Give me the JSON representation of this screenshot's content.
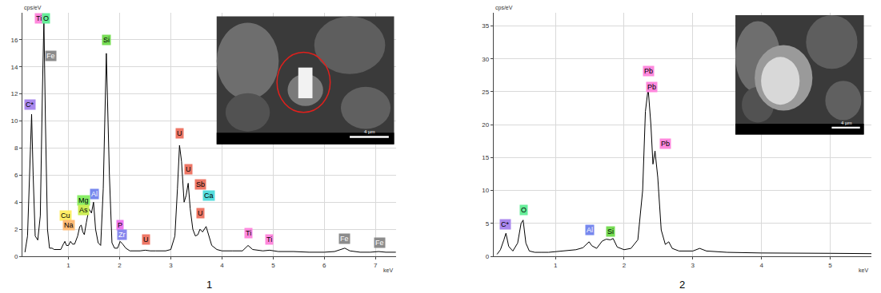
{
  "chart_data": [
    {
      "type": "line",
      "caption": "1",
      "y_label": "cps/eV",
      "x_label": "keV",
      "color": "#000000",
      "grid": true,
      "xlim": [
        0.1,
        7.4
      ],
      "xticks": [
        1,
        2,
        3,
        4,
        5,
        6,
        7
      ],
      "ylim": [
        0,
        18
      ],
      "yticks": [
        0,
        2,
        4,
        6,
        8,
        10,
        12,
        14,
        16
      ],
      "x": [
        0.15,
        0.2,
        0.24,
        0.28,
        0.31,
        0.35,
        0.4,
        0.45,
        0.49,
        0.52,
        0.55,
        0.59,
        0.63,
        0.68,
        0.72,
        0.76,
        0.8,
        0.85,
        0.9,
        0.93,
        0.96,
        1.0,
        1.04,
        1.08,
        1.12,
        1.18,
        1.22,
        1.25,
        1.28,
        1.31,
        1.35,
        1.4,
        1.45,
        1.49,
        1.53,
        1.58,
        1.63,
        1.68,
        1.74,
        1.8,
        1.85,
        1.9,
        1.96,
        2.01,
        2.06,
        2.12,
        2.2,
        2.3,
        2.4,
        2.5,
        2.6,
        2.7,
        2.8,
        2.9,
        3.0,
        3.08,
        3.13,
        3.17,
        3.21,
        3.26,
        3.3,
        3.34,
        3.38,
        3.43,
        3.48,
        3.53,
        3.57,
        3.62,
        3.69,
        3.74,
        3.8,
        3.9,
        4.0,
        4.2,
        4.4,
        4.51,
        4.6,
        4.8,
        4.93,
        5.1,
        5.4,
        5.7,
        6.0,
        6.2,
        6.4,
        6.5,
        6.7,
        6.9,
        7.06,
        7.2,
        7.4
      ],
      "values": [
        0.3,
        1.5,
        6,
        10.5,
        6,
        1.5,
        1.2,
        3,
        12,
        17.5,
        10,
        2,
        0.6,
        0.6,
        0.5,
        0.5,
        0.5,
        0.5,
        0.9,
        1.1,
        0.8,
        0.8,
        1.1,
        0.9,
        0.9,
        1.5,
        2.2,
        2.3,
        1.8,
        1.6,
        2.5,
        3.5,
        3.2,
        4.0,
        2.0,
        1.0,
        0.8,
        5,
        15,
        6,
        1.0,
        0.6,
        0.6,
        1.1,
        0.9,
        0.6,
        0.4,
        0.4,
        0.4,
        0.45,
        0.4,
        0.4,
        0.4,
        0.4,
        0.5,
        1.5,
        5,
        8.2,
        7,
        4,
        4.5,
        5.4,
        3.5,
        2,
        1.5,
        1.6,
        2.0,
        1.8,
        2.2,
        1.5,
        0.8,
        0.5,
        0.4,
        0.4,
        0.4,
        0.8,
        0.5,
        0.4,
        0.45,
        0.35,
        0.35,
        0.3,
        0.3,
        0.35,
        0.6,
        0.4,
        0.3,
        0.3,
        0.35,
        0.3,
        0.3
      ],
      "annotations": [
        {
          "text": "Ti",
          "x": 0.42,
          "y": 17.2,
          "color": "#ff88dd"
        },
        {
          "text": "O",
          "x": 0.56,
          "y": 17.2,
          "color": "#66ee99"
        },
        {
          "text": "Fe",
          "x": 0.66,
          "y": 14.4,
          "color": "#8c8c8c"
        },
        {
          "text": "C*",
          "x": 0.25,
          "y": 10.8,
          "color": "#aa88ee"
        },
        {
          "text": "Si",
          "x": 1.74,
          "y": 15.6,
          "color": "#77dd55"
        },
        {
          "text": "Al",
          "x": 1.5,
          "y": 4.2,
          "color": "#7788ee"
        },
        {
          "text": "Mg",
          "x": 1.3,
          "y": 3.7,
          "color": "#88ee66"
        },
        {
          "text": "As",
          "x": 1.3,
          "y": 3.0,
          "color": "#ccee55"
        },
        {
          "text": "Cu",
          "x": 0.95,
          "y": 2.6,
          "color": "#ffee66"
        },
        {
          "text": "Na",
          "x": 1.0,
          "y": 1.9,
          "color": "#ffbb77"
        },
        {
          "text": "P",
          "x": 2.01,
          "y": 1.9,
          "color": "#ee77ee"
        },
        {
          "text": "Zr",
          "x": 2.04,
          "y": 1.2,
          "color": "#8888ee"
        },
        {
          "text": "U",
          "x": 2.52,
          "y": 0.8,
          "color": "#ee7766"
        },
        {
          "text": "U",
          "x": 3.17,
          "y": 8.7,
          "color": "#ee7766"
        },
        {
          "text": "U",
          "x": 3.34,
          "y": 6.0,
          "color": "#ee7766"
        },
        {
          "text": "Sb",
          "x": 3.58,
          "y": 4.9,
          "color": "#ee7766"
        },
        {
          "text": "Ca",
          "x": 3.74,
          "y": 4.1,
          "color": "#55dddd"
        },
        {
          "text": "U",
          "x": 3.58,
          "y": 2.8,
          "color": "#ee7766"
        },
        {
          "text": "Ti",
          "x": 4.51,
          "y": 1.3,
          "color": "#ff88dd"
        },
        {
          "text": "Ti",
          "x": 4.93,
          "y": 0.8,
          "color": "#ff88dd"
        },
        {
          "text": "Fe",
          "x": 6.4,
          "y": 0.9,
          "color": "#8c8c8c"
        },
        {
          "text": "Fe",
          "x": 7.08,
          "y": 0.6,
          "color": "#8c8c8c"
        }
      ],
      "inset_label": "4 µm"
    },
    {
      "type": "line",
      "caption": "2",
      "y_label": "cps/eV",
      "x_label": "keV",
      "color": "#000000",
      "grid": true,
      "xlim": [
        0.1,
        5.6
      ],
      "xticks": [
        1,
        2,
        3,
        4,
        5
      ],
      "ylim": [
        0,
        37
      ],
      "yticks": [
        0,
        5,
        10,
        15,
        20,
        25,
        30,
        35
      ],
      "x": [
        0.15,
        0.2,
        0.25,
        0.28,
        0.32,
        0.38,
        0.45,
        0.5,
        0.53,
        0.57,
        0.62,
        0.7,
        0.8,
        0.9,
        1.0,
        1.1,
        1.2,
        1.3,
        1.4,
        1.45,
        1.49,
        1.53,
        1.6,
        1.68,
        1.74,
        1.8,
        1.84,
        1.9,
        2.0,
        2.1,
        2.2,
        2.27,
        2.31,
        2.35,
        2.39,
        2.42,
        2.45,
        2.49,
        2.54,
        2.6,
        2.65,
        2.7,
        2.8,
        3.0,
        3.1,
        3.2,
        3.5,
        4.0,
        4.5,
        5.0,
        5.6
      ],
      "values": [
        0.3,
        1,
        2.5,
        3.5,
        1.5,
        0.8,
        2,
        5,
        5.5,
        2,
        0.8,
        0.6,
        0.6,
        0.6,
        0.7,
        0.8,
        0.9,
        1.0,
        1.3,
        1.8,
        2.2,
        1.6,
        1.2,
        2.3,
        2.6,
        2.5,
        2.7,
        1.4,
        1.0,
        1.2,
        2.5,
        10,
        22,
        25.5,
        20,
        14,
        16,
        12,
        4,
        1.8,
        2.2,
        1.2,
        0.8,
        0.8,
        1.2,
        0.8,
        0.6,
        0.5,
        0.5,
        0.45,
        0.4
      ],
      "annotations": [
        {
          "text": "C*",
          "x": 0.27,
          "y": 4.0,
          "color": "#aa88ee"
        },
        {
          "text": "O",
          "x": 0.54,
          "y": 6.2,
          "color": "#66ee99"
        },
        {
          "text": "Al",
          "x": 1.5,
          "y": 3.2,
          "color": "#7788ee"
        },
        {
          "text": "Si",
          "x": 1.8,
          "y": 2.9,
          "color": "#77dd55"
        },
        {
          "text": "Pb",
          "x": 2.35,
          "y": 27.3,
          "color": "#ff88dd"
        },
        {
          "text": "Pb",
          "x": 2.4,
          "y": 24.9,
          "color": "#ff88dd"
        },
        {
          "text": "Pb",
          "x": 2.6,
          "y": 16.2,
          "color": "#ff88dd"
        }
      ],
      "inset_label": "4 µm"
    }
  ]
}
